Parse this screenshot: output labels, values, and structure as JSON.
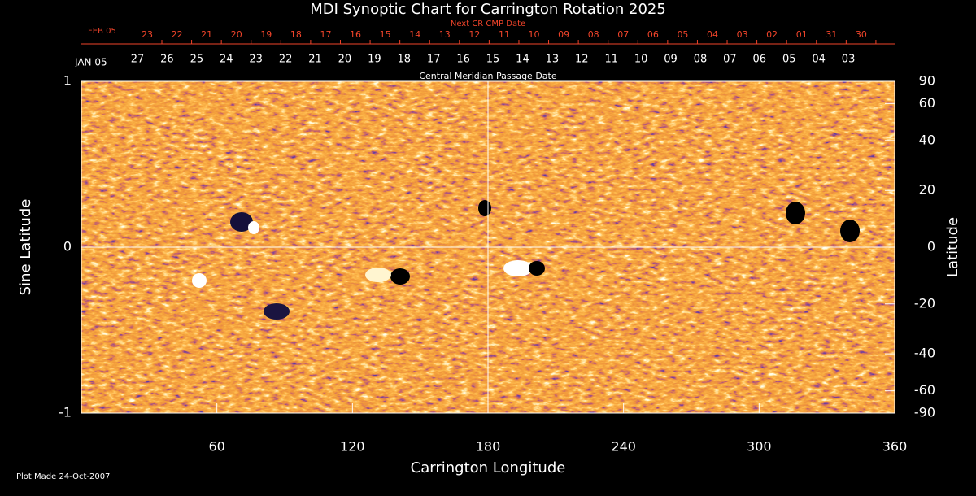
{
  "chart_data": {
    "type": "synoptic-map",
    "title": "MDI Synoptic Chart for Carrington Rotation 2025",
    "xlabel": "Carrington Longitude",
    "ylabel": "Sine Latitude",
    "y2label": "Latitude",
    "xlim": [
      0,
      360
    ],
    "xticks": [
      60,
      120,
      180,
      240,
      300,
      360
    ],
    "ylim": [
      -1,
      1
    ],
    "yticks": [
      -1,
      0,
      1
    ],
    "y2scale": "sine",
    "y2ticks": [
      90,
      60,
      40,
      20,
      0,
      -20,
      -40,
      -60,
      -90
    ],
    "grid_x": [
      180
    ],
    "grid_y": [
      0
    ],
    "cmp_axis_label": "Central Meridian Passage Date",
    "cmp_start": "JAN 05",
    "cmp_dates": [
      "27",
      "26",
      "25",
      "24",
      "23",
      "22",
      "21",
      "20",
      "19",
      "18",
      "17",
      "16",
      "15",
      "14",
      "13",
      "12",
      "11",
      "10",
      "09",
      "08",
      "07",
      "06",
      "05",
      "04",
      "03"
    ],
    "next_axis_label": "Next CR CMP Date",
    "next_start": "FEB 05",
    "next_dates": [
      "23",
      "22",
      "21",
      "20",
      "19",
      "18",
      "17",
      "16",
      "15",
      "14",
      "13",
      "12",
      "11",
      "10",
      "09",
      "08",
      "07",
      "06",
      "05",
      "04",
      "03",
      "02",
      "01",
      "31",
      "30"
    ],
    "next_color": "#f0442a",
    "footnote": "Plot Made 24-Oct-2007"
  }
}
